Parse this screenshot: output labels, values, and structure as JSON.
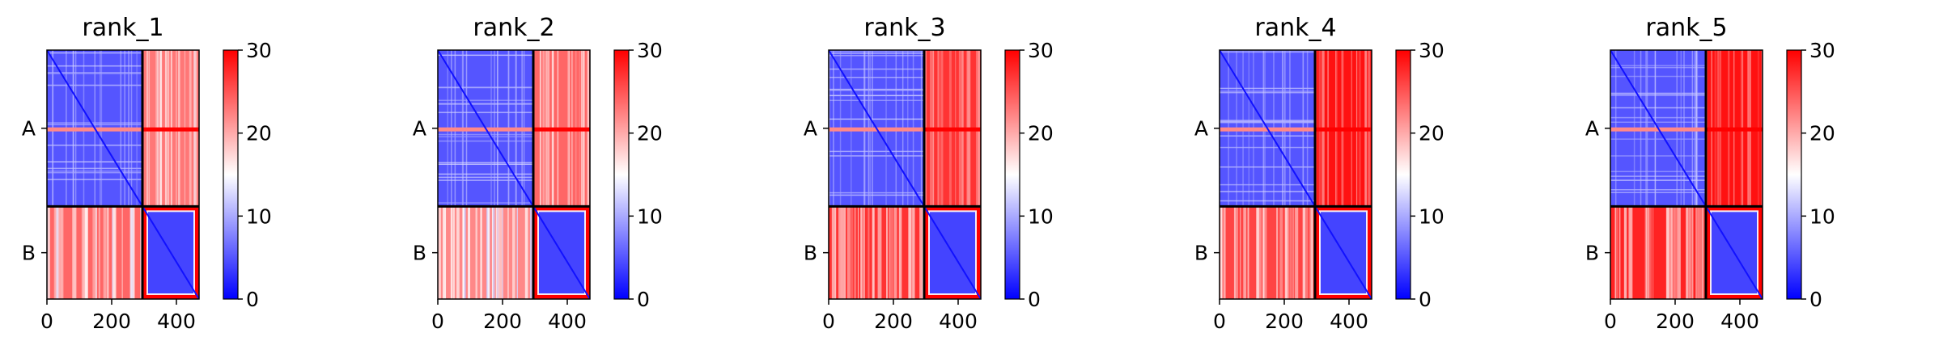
{
  "chart_data": [
    {
      "type": "heatmap",
      "title": "rank_1",
      "colormap": "bwr",
      "colors": {
        "low": "#0000ff",
        "mid": "#ffffff",
        "high": "#ff0000"
      },
      "vmin": 0,
      "vmax": 30,
      "xlim": [
        0,
        470
      ],
      "x_ticks": [
        0,
        200,
        400
      ],
      "y_categories": [
        "A",
        "B"
      ],
      "chain_boundary": 295,
      "colorbar_ticks": [
        0,
        10,
        20,
        30
      ],
      "approx_mean_values": {
        "A_A": 5,
        "A_B": 23,
        "B_A": 24,
        "B_B": 4
      }
    },
    {
      "type": "heatmap",
      "title": "rank_2",
      "colormap": "bwr",
      "colors": {
        "low": "#0000ff",
        "mid": "#ffffff",
        "high": "#ff0000"
      },
      "vmin": 0,
      "vmax": 30,
      "xlim": [
        0,
        470
      ],
      "x_ticks": [
        0,
        200,
        400
      ],
      "y_categories": [
        "A",
        "B"
      ],
      "chain_boundary": 295,
      "colorbar_ticks": [
        0,
        10,
        20,
        30
      ],
      "approx_mean_values": {
        "A_A": 5,
        "A_B": 24,
        "B_A": 22,
        "B_B": 4
      }
    },
    {
      "type": "heatmap",
      "title": "rank_3",
      "colormap": "bwr",
      "colors": {
        "low": "#0000ff",
        "mid": "#ffffff",
        "high": "#ff0000"
      },
      "vmin": 0,
      "vmax": 30,
      "xlim": [
        0,
        470
      ],
      "x_ticks": [
        0,
        200,
        400
      ],
      "y_categories": [
        "A",
        "B"
      ],
      "chain_boundary": 295,
      "colorbar_ticks": [
        0,
        10,
        20,
        30
      ],
      "approx_mean_values": {
        "A_A": 5,
        "A_B": 27,
        "B_A": 27,
        "B_B": 4
      }
    },
    {
      "type": "heatmap",
      "title": "rank_4",
      "colormap": "bwr",
      "colors": {
        "low": "#0000ff",
        "mid": "#ffffff",
        "high": "#ff0000"
      },
      "vmin": 0,
      "vmax": 30,
      "xlim": [
        0,
        470
      ],
      "x_ticks": [
        0,
        200,
        400
      ],
      "y_categories": [
        "A",
        "B"
      ],
      "chain_boundary": 295,
      "colorbar_ticks": [
        0,
        10,
        20,
        30
      ],
      "approx_mean_values": {
        "A_A": 5,
        "A_B": 29,
        "B_A": 26,
        "B_B": 4
      }
    },
    {
      "type": "heatmap",
      "title": "rank_5",
      "colormap": "bwr",
      "colors": {
        "low": "#0000ff",
        "mid": "#ffffff",
        "high": "#ff0000"
      },
      "vmin": 0,
      "vmax": 30,
      "xlim": [
        0,
        470
      ],
      "x_ticks": [
        0,
        200,
        400
      ],
      "y_categories": [
        "A",
        "B"
      ],
      "chain_boundary": 295,
      "colorbar_ticks": [
        0,
        10,
        20,
        30
      ],
      "approx_mean_values": {
        "A_A": 5,
        "A_B": 29,
        "B_A": 28,
        "B_B": 4
      }
    }
  ]
}
